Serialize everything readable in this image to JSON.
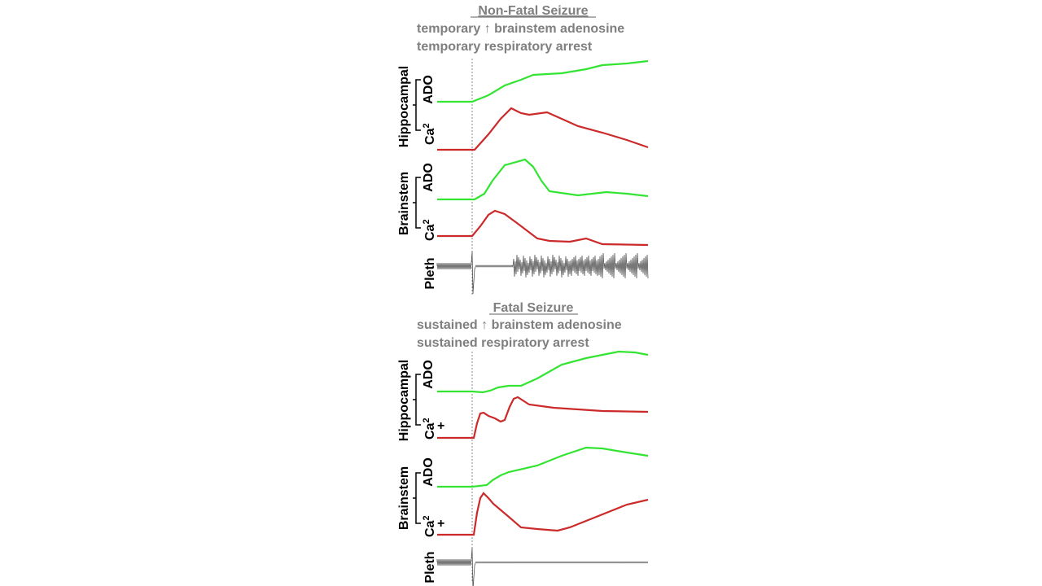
{
  "panels": [
    {
      "title": "Non-Fatal Seizure",
      "line1": "temporary ↑ brainstem adenosine",
      "line2": "temporary respiratory arrest",
      "region1": "Hippocampal",
      "region2": "Brainstem",
      "ado": "ADO",
      "ca": "Ca",
      "ca_sup": "2",
      "ca_sub": "",
      "pleth": "Pleth"
    },
    {
      "title": "Fatal Seizure",
      "line1": "sustained ↑ brainstem adenosine",
      "line2": "sustained respiratory arrest",
      "region1": "Hippocampal",
      "region2": "Brainstem",
      "ado": "ADO",
      "ca": "Ca",
      "ca_sup": "2",
      "ca_sub": "+",
      "pleth": "Pleth"
    }
  ],
  "colors": {
    "ado": "#33e433",
    "ca": "#cc2a2a",
    "text": "#7f7f7f"
  }
}
